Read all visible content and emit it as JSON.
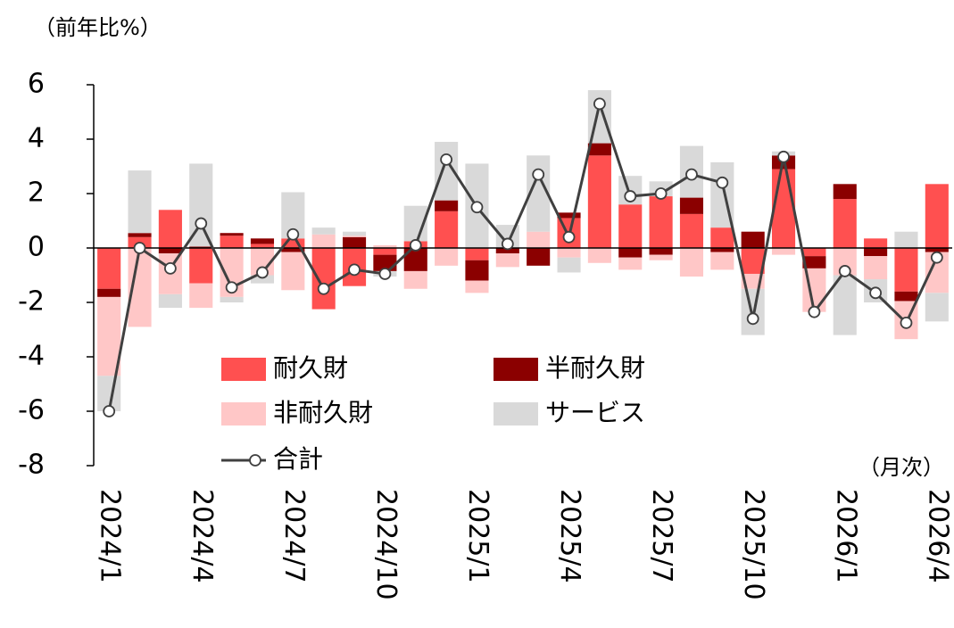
{
  "chart_data": {
    "type": "bar",
    "stacked": true,
    "y_title": "（前年比%）",
    "x_note": "（月次）",
    "categories": [
      "2024/1",
      null,
      null,
      "2024/4",
      null,
      null,
      "2024/7",
      null,
      null,
      "2024/10",
      null,
      null,
      "2025/1",
      null,
      null,
      "2025/4",
      null,
      null,
      "2025/7",
      null,
      null,
      "2025/10",
      null,
      null,
      "2026/1",
      null,
      null,
      "2026/4"
    ],
    "ylim": [
      -8,
      6
    ],
    "yticks": [
      -8,
      -6,
      -4,
      -2,
      0,
      2,
      4,
      6
    ],
    "series": [
      {
        "name": "耐久財",
        "color": "#ff5050",
        "values": [
          -1.5,
          0.4,
          1.4,
          -1.3,
          0.45,
          0.15,
          0.35,
          -2.25,
          -1.4,
          -0.25,
          0.25,
          1.35,
          -0.45,
          0,
          0,
          1.1,
          3.4,
          1.6,
          1.9,
          1.25,
          0.75,
          -0.95,
          2.9,
          -0.3,
          1.8,
          0.35,
          -1.6,
          2.35
        ]
      },
      {
        "name": "半耐久財",
        "color": "#8b0000",
        "values": [
          -0.3,
          0.15,
          -0.2,
          0.05,
          0.1,
          0.2,
          -0.15,
          0,
          0.4,
          -0.6,
          -0.85,
          0.4,
          -0.75,
          -0.2,
          -0.65,
          0.2,
          0.45,
          -0.35,
          -0.25,
          0.6,
          -0.15,
          0.6,
          0.5,
          -0.45,
          0.55,
          -0.3,
          -0.35,
          -0.15
        ]
      },
      {
        "name": "非耐久財",
        "color": "#ffc7c7",
        "values": [
          -2.9,
          -2.9,
          -1.5,
          -0.9,
          -1.8,
          -1.0,
          -1.4,
          0.5,
          0.05,
          0.1,
          -0.65,
          -0.65,
          -0.45,
          -0.5,
          0.6,
          -0.35,
          -0.55,
          -0.45,
          -0.2,
          -1.05,
          -0.65,
          -0.55,
          -0.25,
          -1.6,
          -1.0,
          -0.85,
          -1.4,
          -1.5
        ]
      },
      {
        "name": "サービス",
        "color": "#d9d9d9",
        "values": [
          -1.3,
          2.3,
          -0.5,
          3.05,
          -0.2,
          -0.3,
          1.7,
          0.25,
          0.15,
          -0.2,
          1.3,
          2.15,
          3.1,
          0.85,
          2.8,
          -0.55,
          1.95,
          1.05,
          0.55,
          1.9,
          2.4,
          -1.7,
          0.15,
          0,
          -2.2,
          -0.85,
          0.6,
          -1.05
        ]
      }
    ],
    "line": {
      "name": "合計",
      "color": "#404040",
      "values": [
        -6.0,
        0.0,
        -0.75,
        0.9,
        -1.45,
        -0.9,
        0.5,
        -1.5,
        -0.8,
        -0.95,
        0.1,
        3.25,
        1.5,
        0.15,
        2.7,
        0.4,
        5.3,
        1.9,
        2.0,
        2.7,
        2.4,
        -2.6,
        3.35,
        -2.35,
        -0.85,
        -1.65,
        -2.75,
        -0.35
      ]
    }
  }
}
